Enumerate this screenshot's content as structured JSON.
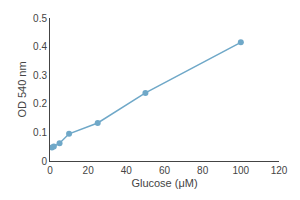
{
  "chart_data": {
    "type": "line",
    "x": [
      1,
      2,
      5,
      10,
      25,
      50,
      100
    ],
    "values": [
      0.047,
      0.051,
      0.062,
      0.095,
      0.133,
      0.238,
      0.415
    ],
    "color": "#6fa8c8",
    "marker": "circle",
    "xlabel": "Glucose (μM)",
    "ylabel": "OD 540 nm",
    "xlim": [
      0,
      120
    ],
    "ylim": [
      0,
      0.5
    ],
    "xticks": [
      0,
      20,
      40,
      60,
      80,
      100,
      120
    ],
    "yticks": [
      0,
      0.1,
      0.2,
      0.3,
      0.4,
      0.5
    ],
    "grid": false
  }
}
